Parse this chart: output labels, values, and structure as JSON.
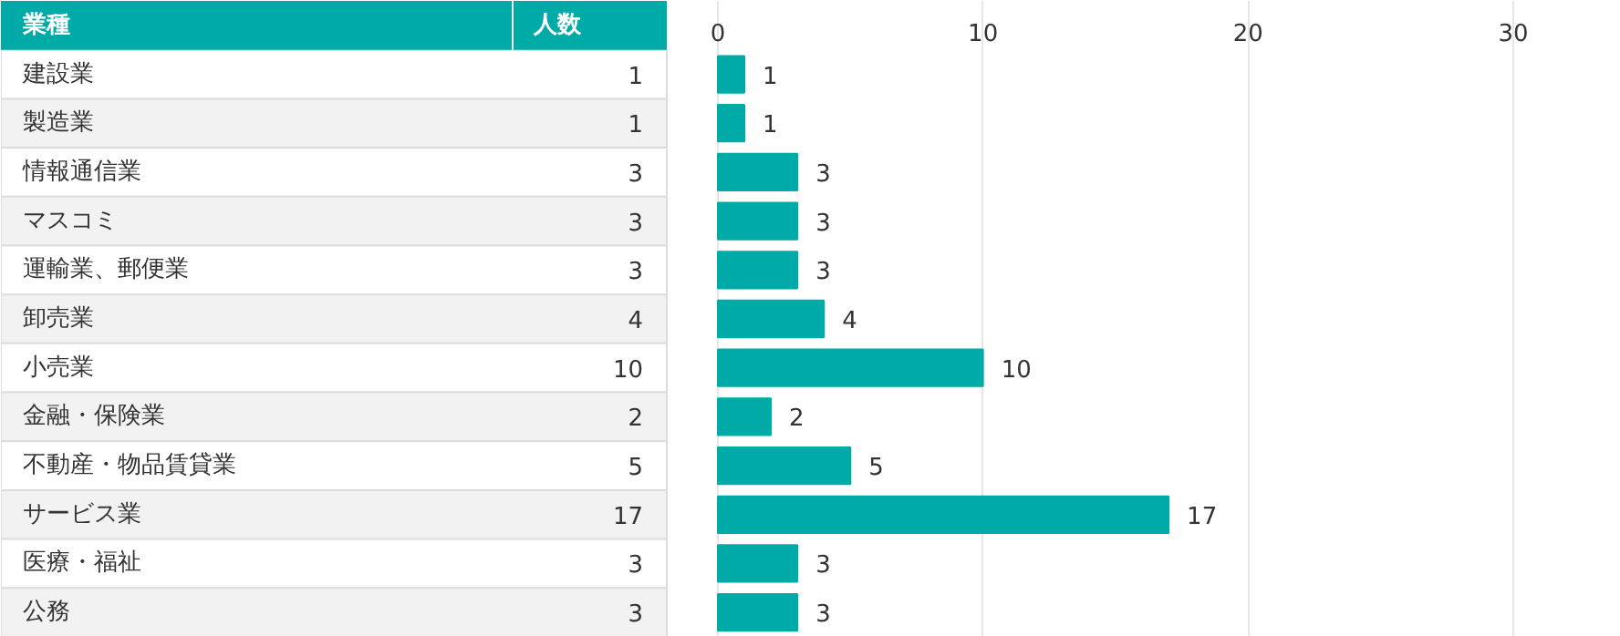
{
  "chart_data": {
    "type": "bar",
    "orientation": "horizontal",
    "ylabel": "業種",
    "xlabel": "人数",
    "categories": [
      "建設業",
      "製造業",
      "情報通信業",
      "マスコミ",
      "運輸業、郵便業",
      "卸売業",
      "小売業",
      "金融・保険業",
      "不動産・物品賃貸業",
      "サービス業",
      "医療・福祉",
      "公務"
    ],
    "values": [
      1,
      1,
      3,
      3,
      3,
      4,
      10,
      2,
      5,
      17,
      3,
      3
    ],
    "annotations": [
      "1",
      "1",
      "3",
      "3",
      "3",
      "4",
      "10",
      "2",
      "5",
      "17",
      "3",
      "3"
    ],
    "color": "#00aba7",
    "xlim": [
      -27.04,
      34.06
    ],
    "xticks": [
      0,
      10,
      20,
      30
    ],
    "grid": "x",
    "data_labels": true
  }
}
